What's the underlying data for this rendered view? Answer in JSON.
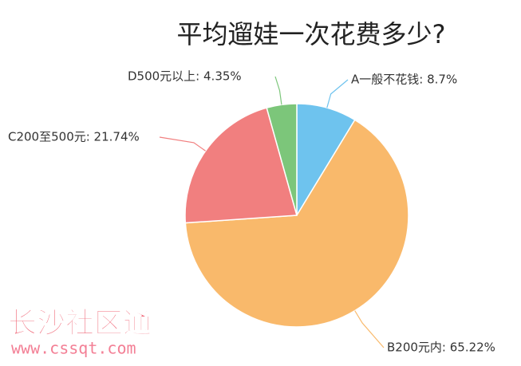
{
  "chart_data": {
    "type": "pie",
    "title": "平均遛娃一次花费多少?",
    "categories": [
      "A一般不花钱",
      "B200元内",
      "C200至500元",
      "D500元以上"
    ],
    "values": [
      8.7,
      65.22,
      21.74,
      4.35
    ],
    "value_labels": [
      "A一般不花钱: 8.7%",
      "B200元内: 65.22%",
      "C200至500元: 21.74%",
      "D500元以上: 4.35%"
    ],
    "colors": [
      "#6ec3ee",
      "#f9b96b",
      "#f17f7f",
      "#7cc67a"
    ]
  },
  "watermark": {
    "name": "长沙社区通",
    "url": "www.cssqt.com"
  }
}
